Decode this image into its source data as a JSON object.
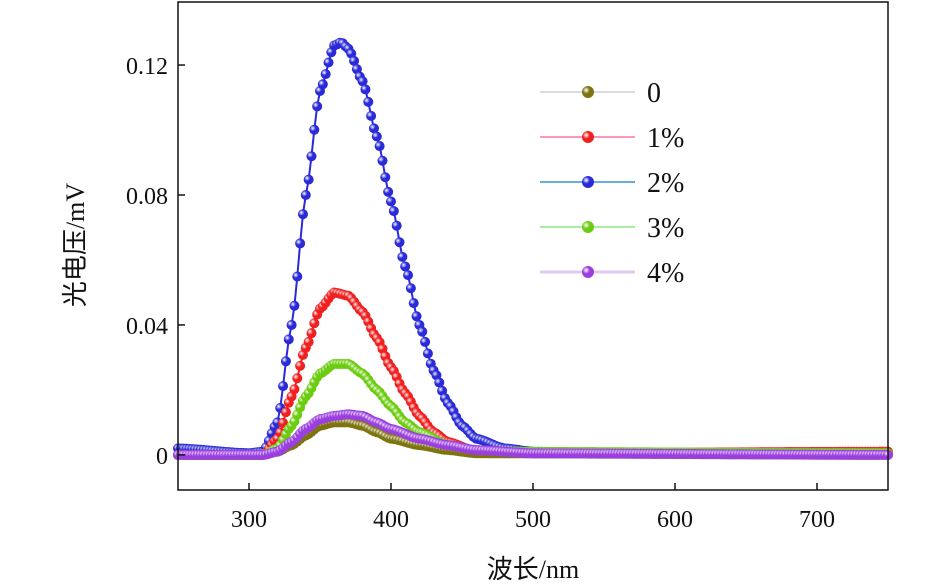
{
  "chart_data": {
    "type": "scatter",
    "title": "",
    "xlabel": "波长/nm",
    "ylabel": "光电压/mV",
    "xlim": [
      250,
      750
    ],
    "ylim": [
      -0.0108,
      0.1394
    ],
    "xticks": [
      300,
      400,
      500,
      600,
      700
    ],
    "yticks": [
      0,
      0.04,
      0.08,
      0.12
    ],
    "ytick_labels": [
      "0",
      "0.04",
      "0.08",
      "0.12"
    ],
    "grid": false,
    "legend_position": "top-right",
    "series": [
      {
        "name": "2%",
        "color": "#2a2ad8",
        "line_color": "#6aaee0",
        "x": [
          250,
          300,
          310,
          320,
          330,
          340,
          350,
          360,
          365,
          370,
          380,
          390,
          400,
          410,
          420,
          430,
          440,
          450,
          460,
          480,
          500,
          550,
          750
        ],
        "y": [
          0.002,
          0.0005,
          0.001,
          0.01,
          0.04,
          0.08,
          0.112,
          0.126,
          0.127,
          0.125,
          0.115,
          0.098,
          0.078,
          0.058,
          0.04,
          0.026,
          0.016,
          0.009,
          0.005,
          0.002,
          0.001,
          0.0005,
          0.0005
        ]
      },
      {
        "name": "1%",
        "color": "#f02020",
        "line_color": "#ff5a8a",
        "x": [
          250,
          310,
          320,
          330,
          340,
          350,
          360,
          370,
          380,
          390,
          400,
          410,
          420,
          430,
          440,
          460,
          500,
          750
        ],
        "y": [
          0,
          0,
          0.005,
          0.018,
          0.033,
          0.045,
          0.05,
          0.049,
          0.044,
          0.036,
          0.027,
          0.019,
          0.012,
          0.007,
          0.004,
          0.001,
          0.0005,
          0.001
        ]
      },
      {
        "name": "3%",
        "color": "#6ccc10",
        "line_color": "#7be06a",
        "x": [
          250,
          310,
          320,
          330,
          340,
          350,
          360,
          370,
          380,
          390,
          400,
          410,
          420,
          440,
          460,
          750
        ],
        "y": [
          0,
          0,
          0.002,
          0.009,
          0.018,
          0.025,
          0.028,
          0.028,
          0.025,
          0.02,
          0.015,
          0.01,
          0.007,
          0.003,
          0.001,
          0.0005
        ]
      },
      {
        "name": "0",
        "color": "#7d7410",
        "line_color": "#c8c8c8",
        "x": [
          250,
          310,
          320,
          330,
          340,
          350,
          360,
          370,
          380,
          390,
          400,
          420,
          440,
          460,
          750
        ],
        "y": [
          0,
          0,
          0.001,
          0.003,
          0.006,
          0.009,
          0.01,
          0.01,
          0.009,
          0.007,
          0.005,
          0.003,
          0.0015,
          0.0005,
          0
        ]
      },
      {
        "name": "4%",
        "color": "#9a3ee0",
        "line_color": "#e0c8f0",
        "x": [
          250,
          310,
          320,
          330,
          340,
          350,
          360,
          370,
          380,
          390,
          400,
          420,
          440,
          460,
          500,
          750
        ],
        "y": [
          0,
          0,
          0.001,
          0.004,
          0.008,
          0.011,
          0.012,
          0.0125,
          0.012,
          0.01,
          0.008,
          0.005,
          0.003,
          0.0015,
          0.0005,
          0
        ]
      }
    ],
    "legend_order": [
      "0",
      "1%",
      "2%",
      "3%",
      "4%"
    ]
  }
}
